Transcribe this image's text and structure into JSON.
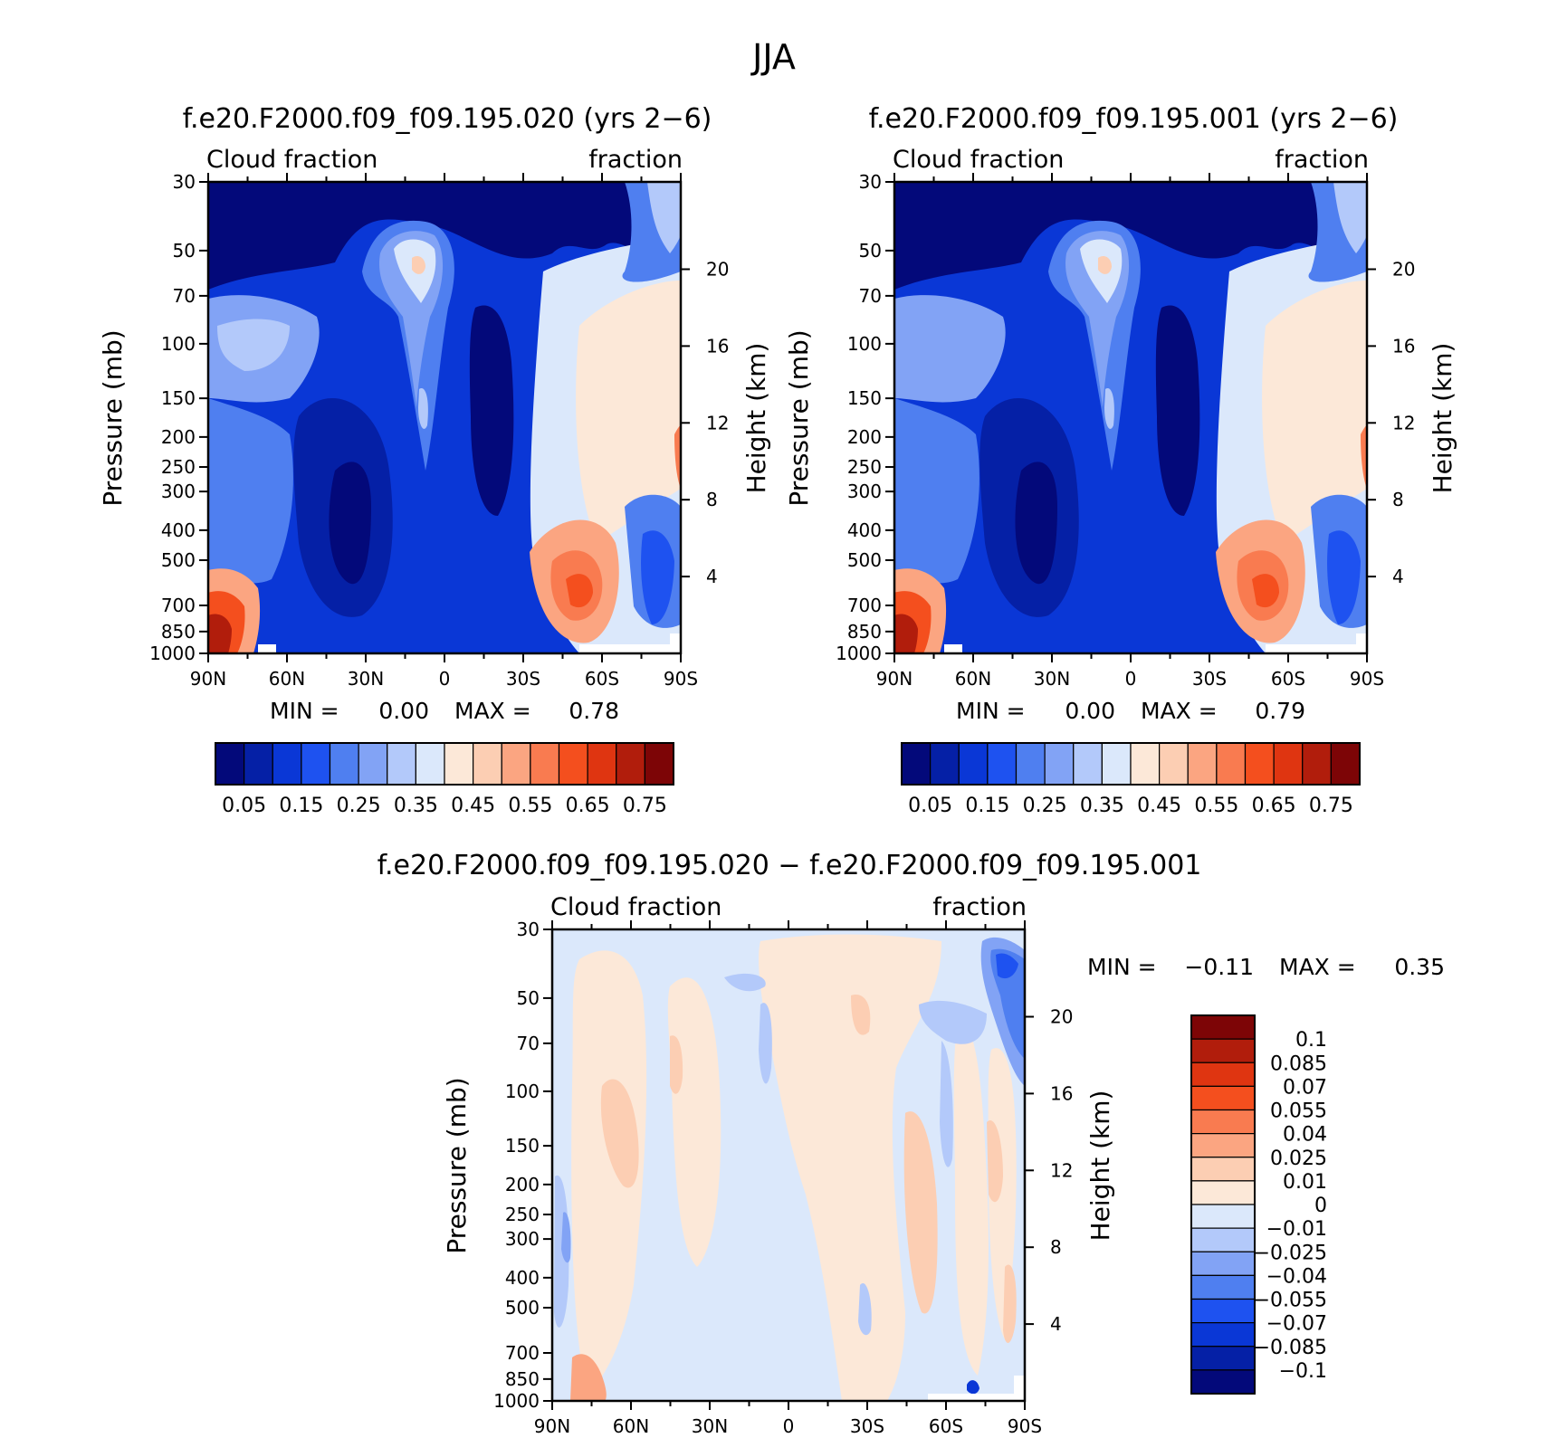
{
  "figure": {
    "season": "JJA"
  },
  "panels": [
    {
      "title": "f.e20.F2000.f09_f09.195.020 (yrs 2−6)",
      "left_label": "Cloud fraction",
      "right_label": "fraction",
      "ylabel": "Pressure (mb)",
      "ylabel_right": "Height (km)",
      "min_label": "MIN =",
      "min_value": "0.00",
      "max_label": "MAX =",
      "max_value": "0.78"
    },
    {
      "title": "f.e20.F2000.f09_f09.195.001 (yrs 2−6)",
      "left_label": "Cloud fraction",
      "right_label": "fraction",
      "ylabel": "Pressure (mb)",
      "ylabel_right": "Height (km)",
      "min_label": "MIN =",
      "min_value": "0.00",
      "max_label": "MAX =",
      "max_value": "0.79"
    },
    {
      "title": "f.e20.F2000.f09_f09.195.020 − f.e20.F2000.f09_f09.195.001",
      "left_label": "Cloud fraction",
      "right_label": "fraction",
      "ylabel": "Pressure (mb)",
      "ylabel_right": "Height (km)",
      "min_label": "MIN =",
      "min_value": "−0.11",
      "max_label": "MAX =",
      "max_value": "0.35"
    }
  ],
  "chart_data": [
    {
      "type": "heatmap",
      "title": "f.e20.F2000.f09_f09.195.020 (yrs 2−6)",
      "ylabel": "Pressure (mb)",
      "ylabel_right": "Height (km)",
      "x_ticks": [
        "90N",
        "60N",
        "30N",
        "0",
        "30S",
        "60S",
        "90S"
      ],
      "x_values": [
        90,
        60,
        30,
        0,
        -30,
        -60,
        -90
      ],
      "y_ticks": [
        "30",
        "50",
        "70",
        "100",
        "150",
        "200",
        "250",
        "300",
        "400",
        "500",
        "700",
        "850",
        "1000"
      ],
      "y_values": [
        30,
        50,
        70,
        100,
        150,
        200,
        250,
        300,
        400,
        500,
        700,
        850,
        1000
      ],
      "y_scale": "log",
      "ylim": [
        1000,
        30
      ],
      "height_ticks_km": [
        20,
        16,
        12,
        8,
        4
      ],
      "min": 0.0,
      "max": 0.78,
      "colorbar_levels": [
        0.05,
        0.1,
        0.15,
        0.2,
        0.25,
        0.3,
        0.35,
        0.4,
        0.45,
        0.5,
        0.55,
        0.6,
        0.65,
        0.7,
        0.75
      ],
      "colorbar_labels": [
        "0.05",
        "0.15",
        "0.25",
        "0.35",
        "0.45",
        "0.55",
        "0.65",
        "0.75"
      ]
    },
    {
      "type": "heatmap",
      "title": "f.e20.F2000.f09_f09.195.001 (yrs 2−6)",
      "ylabel": "Pressure (mb)",
      "ylabel_right": "Height (km)",
      "x_ticks": [
        "90N",
        "60N",
        "30N",
        "0",
        "30S",
        "60S",
        "90S"
      ],
      "x_values": [
        90,
        60,
        30,
        0,
        -30,
        -60,
        -90
      ],
      "y_ticks": [
        "30",
        "50",
        "70",
        "100",
        "150",
        "200",
        "250",
        "300",
        "400",
        "500",
        "700",
        "850",
        "1000"
      ],
      "y_values": [
        30,
        50,
        70,
        100,
        150,
        200,
        250,
        300,
        400,
        500,
        700,
        850,
        1000
      ],
      "y_scale": "log",
      "ylim": [
        1000,
        30
      ],
      "height_ticks_km": [
        20,
        16,
        12,
        8,
        4
      ],
      "min": 0.0,
      "max": 0.79,
      "colorbar_levels": [
        0.05,
        0.1,
        0.15,
        0.2,
        0.25,
        0.3,
        0.35,
        0.4,
        0.45,
        0.5,
        0.55,
        0.6,
        0.65,
        0.7,
        0.75
      ],
      "colorbar_labels": [
        "0.05",
        "0.15",
        "0.25",
        "0.35",
        "0.45",
        "0.55",
        "0.65",
        "0.75"
      ]
    },
    {
      "type": "heatmap",
      "title": "f.e20.F2000.f09_f09.195.020 − f.e20.F2000.f09_f09.195.001",
      "ylabel": "Pressure (mb)",
      "ylabel_right": "Height (km)",
      "x_ticks": [
        "90N",
        "60N",
        "30N",
        "0",
        "30S",
        "60S",
        "90S"
      ],
      "x_values": [
        90,
        60,
        30,
        0,
        -30,
        -60,
        -90
      ],
      "y_ticks": [
        "30",
        "50",
        "70",
        "100",
        "150",
        "200",
        "250",
        "300",
        "400",
        "500",
        "700",
        "850",
        "1000"
      ],
      "y_values": [
        30,
        50,
        70,
        100,
        150,
        200,
        250,
        300,
        400,
        500,
        700,
        850,
        1000
      ],
      "y_scale": "log",
      "ylim": [
        1000,
        30
      ],
      "height_ticks_km": [
        20,
        16,
        12,
        8,
        4
      ],
      "min": -0.11,
      "max": 0.35,
      "colorbar_levels": [
        -0.1,
        -0.085,
        -0.07,
        -0.055,
        -0.04,
        -0.025,
        -0.01,
        0,
        0.01,
        0.025,
        0.04,
        0.055,
        0.07,
        0.085,
        0.1
      ],
      "colorbar_labels": [
        "0.1",
        "0.085",
        "0.07",
        "0.055",
        "0.04",
        "0.025",
        "0.01",
        "0",
        "−0.01",
        "−0.025",
        "−0.04",
        "−0.055",
        "−0.07",
        "−0.085",
        "−0.1"
      ]
    }
  ],
  "colors": {
    "abs_palette": [
      "#03097a",
      "#0520a6",
      "#0a37d6",
      "#1e52f0",
      "#4f7ff0",
      "#82a3f5",
      "#b3c9fa",
      "#dbe8fb",
      "#fce8d8",
      "#fcceb3",
      "#fba581",
      "#f97b50",
      "#f44f1e",
      "#df3511",
      "#b11d0c",
      "#7d0506"
    ],
    "diff_palette": [
      "#03097a",
      "#0520a6",
      "#0a37d6",
      "#1e52f0",
      "#4f7ff0",
      "#82a3f5",
      "#b3c9fa",
      "#dbe8fb",
      "#fce8d8",
      "#fcceb3",
      "#fba581",
      "#f97b50",
      "#f44f1e",
      "#df3511",
      "#b11d0c",
      "#7d0506"
    ]
  }
}
